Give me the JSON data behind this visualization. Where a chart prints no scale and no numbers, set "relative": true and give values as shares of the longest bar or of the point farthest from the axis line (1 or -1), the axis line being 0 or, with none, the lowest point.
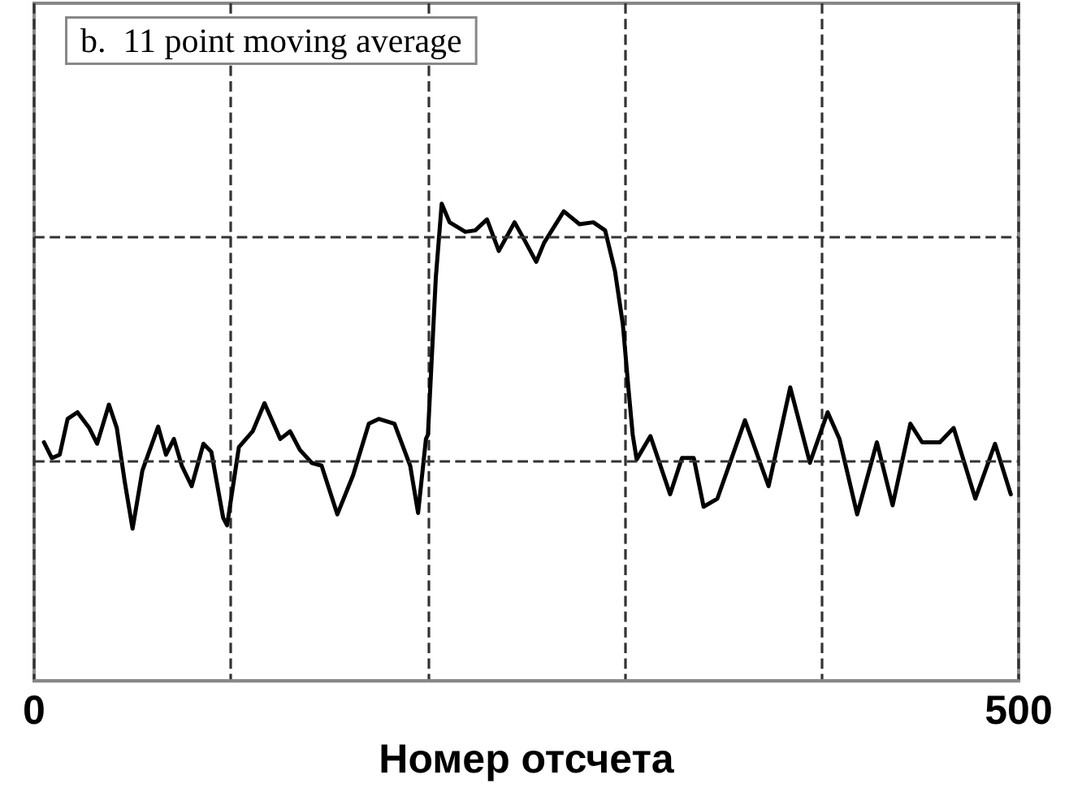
{
  "chart_data": {
    "type": "line",
    "relative": true,
    "xlabel": "Номер отсчета",
    "annotations": [
      "b.  11 point moving average"
    ],
    "xlim": [
      0,
      500
    ],
    "xticks": [
      0,
      {
        "value": 100,
        "label": null
      },
      {
        "value": 200,
        "label": null
      },
      {
        "value": 300,
        "label": null
      },
      {
        "value": 400,
        "label": null
      },
      500
    ],
    "grid": "x",
    "line_style": "solid",
    "marker": "none",
    "ref_lines": [
      {
        "axis": "y",
        "value": 0.457,
        "line_style": "dashed",
        "color": "#333333"
      },
      {
        "axis": "y",
        "value": 0.928,
        "line_style": "dashed",
        "color": "#333333"
      }
    ],
    "series": [
      {
        "color": "#000000",
        "x": [
          5,
          9,
          13,
          17,
          22,
          28,
          32,
          38,
          42,
          46,
          50,
          55,
          63,
          67,
          71,
          75,
          80,
          86,
          90,
          96,
          98,
          104,
          111,
          117,
          125,
          130,
          135,
          141,
          146,
          154,
          162,
          170,
          175,
          183,
          191,
          195,
          199,
          200,
          204,
          207,
          211,
          219,
          224,
          230,
          236,
          244,
          249,
          255,
          259,
          269,
          277,
          284,
          290,
          295,
          299,
          302,
          304,
          306,
          313,
          323,
          329,
          335,
          340,
          347,
          354,
          361,
          373,
          384,
          394,
          403,
          409,
          418,
          428,
          436,
          445,
          451,
          460,
          467,
          478,
          488,
          496
        ],
        "values": [
          0.5,
          0.467,
          0.474,
          0.549,
          0.563,
          0.53,
          0.497,
          0.579,
          0.53,
          0.418,
          0.319,
          0.441,
          0.533,
          0.474,
          0.507,
          0.451,
          0.408,
          0.497,
          0.48,
          0.342,
          0.326,
          0.49,
          0.523,
          0.582,
          0.507,
          0.523,
          0.484,
          0.457,
          0.451,
          0.349,
          0.431,
          0.539,
          0.549,
          0.539,
          0.451,
          0.352,
          0.507,
          0.516,
          0.845,
          1.0,
          0.961,
          0.941,
          0.944,
          0.967,
          0.901,
          0.961,
          0.924,
          0.878,
          0.918,
          0.984,
          0.957,
          0.961,
          0.944,
          0.859,
          0.747,
          0.605,
          0.516,
          0.464,
          0.513,
          0.391,
          0.467,
          0.467,
          0.365,
          0.382,
          0.464,
          0.546,
          0.408,
          0.615,
          0.457,
          0.563,
          0.507,
          0.349,
          0.5,
          0.368,
          0.539,
          0.5,
          0.5,
          0.53,
          0.382,
          0.497,
          0.391
        ]
      }
    ]
  }
}
